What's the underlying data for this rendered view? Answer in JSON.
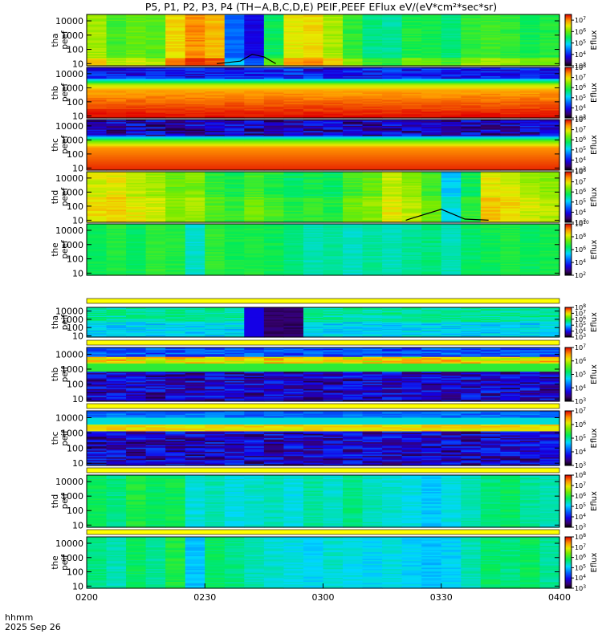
{
  "title": "P5, P1, P2, P3, P4 (TH−A,B,C,D,E) PEIF,PEEF EFlux eV/(eV*cm²*sec*sr)",
  "time_axis": {
    "label": "hhmm",
    "date": "2025 Sep 26",
    "ticks": [
      "0200",
      "0230",
      "0300",
      "0330",
      "0400"
    ]
  },
  "colorbar_label": "Eflux",
  "chart_data": {
    "type": "heatmap",
    "x_range": [
      "02:00",
      "04:00"
    ],
    "y_scale": "log",
    "y_ticks": [
      "10",
      "100",
      "1000",
      "10000"
    ],
    "panels": [
      {
        "probe": "tha",
        "product": "peef",
        "label": "tha\npeef",
        "cbar_ticks": [
          "10^3",
          "10^4",
          "10^5",
          "10^6",
          "10^7"
        ],
        "cbar_range": [
          3,
          7.5
        ],
        "description_levels": [
          5.8,
          5.5,
          5.7,
          5.6,
          6.2,
          6.6,
          6.4,
          4.2,
          3.6,
          5.0,
          6.0,
          6.2,
          5.8,
          5.3,
          5.0,
          4.9,
          5.2,
          5.1,
          5.0,
          5.3,
          5.4,
          5.3,
          5.1,
          5.2
        ],
        "overlay_line": [
          [
            2.55,
            10
          ],
          [
            2.65,
            15
          ],
          [
            2.7,
            45
          ],
          [
            2.75,
            30
          ],
          [
            2.8,
            10
          ]
        ]
      },
      {
        "probe": "thb",
        "product": "peef",
        "label": "thb\npeef",
        "cbar_ticks": [
          "10^3",
          "10^4",
          "10^5",
          "10^6",
          "10^7",
          "10^8"
        ],
        "cbar_range": [
          3,
          8
        ]
      },
      {
        "probe": "thc",
        "product": "peef",
        "label": "thc\npeef",
        "cbar_ticks": [
          "10^3",
          "10^4",
          "10^5",
          "10^6",
          "10^7",
          "10^8"
        ],
        "cbar_range": [
          3,
          8
        ]
      },
      {
        "probe": "thd",
        "product": "peef",
        "label": "thd\npeef",
        "cbar_ticks": [
          "10^3",
          "10^4",
          "10^5",
          "10^6",
          "10^7",
          "10^8"
        ],
        "cbar_range": [
          3,
          8
        ],
        "overlay_line": [
          [
            3.35,
            10
          ],
          [
            3.5,
            60
          ],
          [
            3.6,
            12
          ],
          [
            3.7,
            10
          ]
        ]
      },
      {
        "probe": "the",
        "product": "peef",
        "label": "the\npeef",
        "cbar_ticks": [
          "10^2",
          "10^4",
          "10^6",
          "10^8",
          "10^10"
        ],
        "cbar_range": [
          2,
          10
        ]
      },
      {
        "probe": "tha",
        "product": "peif",
        "label": "tha\npeif",
        "cbar_ticks": [
          "10^3",
          "10^4",
          "10^5",
          "10^6",
          "10^7",
          "10^8"
        ],
        "cbar_range": [
          3,
          8
        ]
      },
      {
        "probe": "thb",
        "product": "peif",
        "label": "thb\npeif",
        "cbar_ticks": [
          "10^3",
          "10^4",
          "10^5",
          "10^6",
          "10^7"
        ],
        "cbar_range": [
          3,
          7
        ]
      },
      {
        "probe": "thc",
        "product": "peif",
        "label": "thc\npeif",
        "cbar_ticks": [
          "10^3",
          "10^4",
          "10^5",
          "10^6",
          "10^7"
        ],
        "cbar_range": [
          3,
          7
        ]
      },
      {
        "probe": "thd",
        "product": "peif",
        "label": "thd\npeif",
        "cbar_ticks": [
          "10^3",
          "10^4",
          "10^5",
          "10^6",
          "10^7",
          "10^8"
        ],
        "cbar_range": [
          3,
          8
        ]
      },
      {
        "probe": "the",
        "product": "peif",
        "label": "the\npeif",
        "cbar_ticks": [
          "10^3",
          "10^4",
          "10^5",
          "10^6",
          "10^7",
          "10^8"
        ],
        "cbar_range": [
          3,
          8
        ]
      }
    ]
  }
}
